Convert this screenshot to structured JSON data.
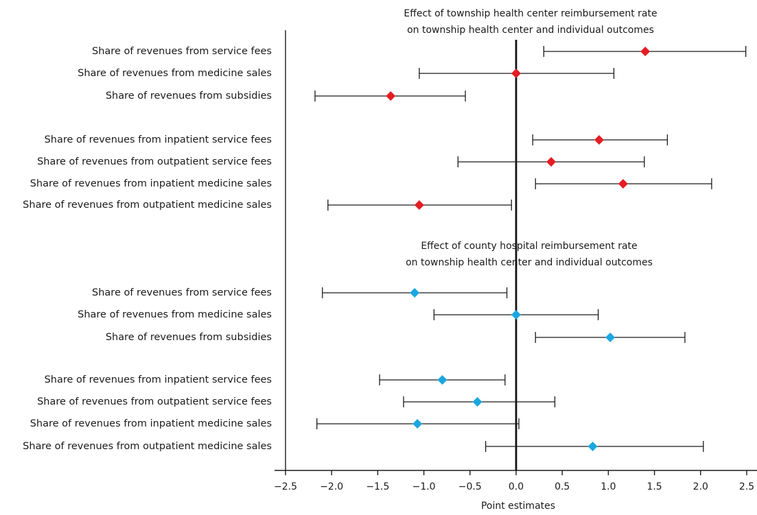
{
  "chart_data": {
    "type": "scatter",
    "subtype": "coefficient-plot",
    "xlabel": "Point estimates",
    "xlim": [
      -2.5,
      2.5
    ],
    "xticks": [
      "−2.5",
      "−2.0",
      "−1.5",
      "−1.0",
      "−0.5",
      "0.0",
      "0.5",
      "1.0",
      "1.5",
      "2.0",
      "2.5"
    ],
    "xtick_values": [
      -2.5,
      -2.0,
      -1.5,
      -1.0,
      -0.5,
      0.0,
      0.5,
      1.0,
      1.5,
      2.0,
      2.5
    ],
    "reference_line": 0,
    "grid": false,
    "panels": [
      {
        "title_line1": "Effect of township health center reimbursement rate",
        "title_line2": "on township health center and individual outcomes",
        "marker_color": "#e31e24",
        "rows": [
          {
            "label": "Share of revenues from service fees",
            "estimate": 1.4,
            "ci_low": 0.3,
            "ci_high": 2.49,
            "group": 1
          },
          {
            "label": "Share of revenues from medicine sales",
            "estimate": 0.0,
            "ci_low": -1.05,
            "ci_high": 1.06,
            "group": 1
          },
          {
            "label": "Share of revenues from subsidies",
            "estimate": -1.36,
            "ci_low": -2.18,
            "ci_high": -0.55,
            "group": 1
          },
          {
            "label": "Share of revenues from inpatient service fees",
            "estimate": 0.9,
            "ci_low": 0.18,
            "ci_high": 1.64,
            "group": 2
          },
          {
            "label": "Share of revenues from outpatient service fees",
            "estimate": 0.38,
            "ci_low": -0.63,
            "ci_high": 1.39,
            "group": 2
          },
          {
            "label": "Share of revenues from  inpatient medicine sales",
            "estimate": 1.16,
            "ci_low": 0.21,
            "ci_high": 2.12,
            "group": 2
          },
          {
            "label": "Share of revenues from  outpatient medicine sales",
            "estimate": -1.05,
            "ci_low": -2.04,
            "ci_high": -0.05,
            "group": 2
          }
        ]
      },
      {
        "title_line1": "Effect of county hospital reimbursement rate",
        "title_line2": "on township health center and individual outcomes",
        "marker_color": "#1aa7e0",
        "rows": [
          {
            "label": "Share of revenues from service fees",
            "estimate": -1.1,
            "ci_low": -2.1,
            "ci_high": -0.1,
            "group": 1
          },
          {
            "label": "Share of revenues from medicine sales",
            "estimate": 0.0,
            "ci_low": -0.89,
            "ci_high": 0.89,
            "group": 1
          },
          {
            "label": "Share of revenues from subsidies",
            "estimate": 1.02,
            "ci_low": 0.21,
            "ci_high": 1.83,
            "group": 1
          },
          {
            "label": "Share of revenues from inpatient service fees",
            "estimate": -0.8,
            "ci_low": -1.48,
            "ci_high": -0.12,
            "group": 2
          },
          {
            "label": "Share of revenues from outpatient service fees",
            "estimate": -0.42,
            "ci_low": -1.22,
            "ci_high": 0.42,
            "group": 2
          },
          {
            "label": "Share of revenues from  inpatient medicine sales",
            "estimate": -1.07,
            "ci_low": -2.16,
            "ci_high": 0.03,
            "group": 2
          },
          {
            "label": "Share of revenues from  outpatient medicine sales",
            "estimate": 0.83,
            "ci_low": -0.33,
            "ci_high": 2.03,
            "group": 2
          }
        ]
      }
    ]
  }
}
